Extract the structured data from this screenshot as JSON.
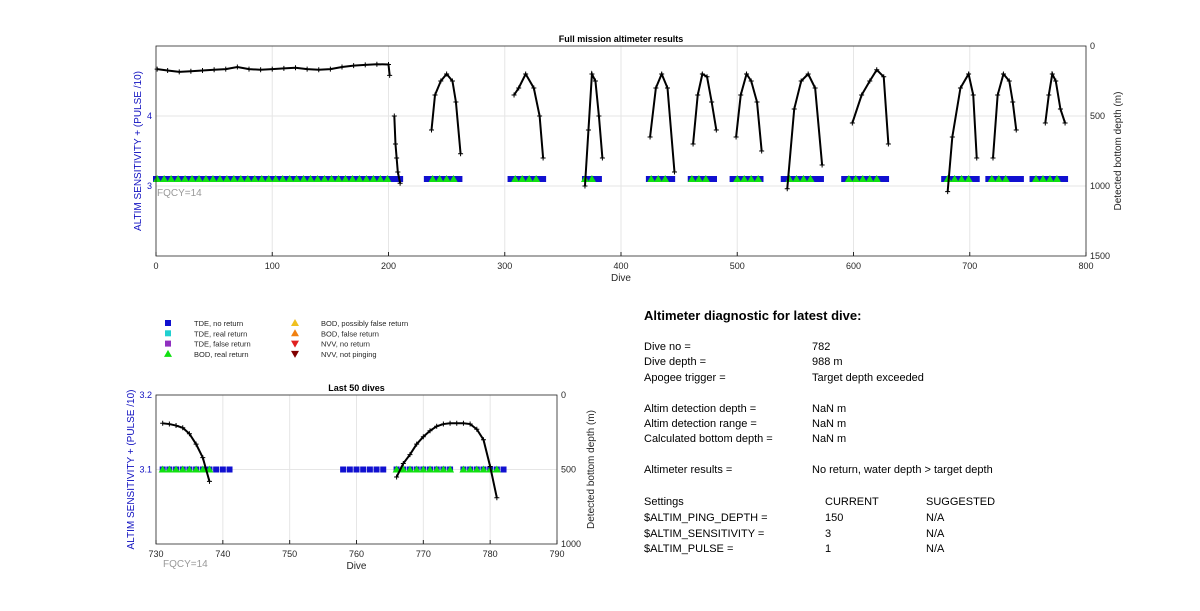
{
  "chart_data": [
    {
      "type": "scatter",
      "title": "Full mission altimeter results",
      "xlabel": "Dive",
      "ylabel": "ALTIM SENSITIVITY + (PULSE /10)",
      "y2label": "Detected bottom depth (m)",
      "annotation": "FQCY=14",
      "xlim": [
        0,
        800
      ],
      "ylim": [
        2,
        5
      ],
      "y2lim": [
        1500,
        0
      ],
      "xticks": [
        "0",
        "100",
        "200",
        "300",
        "400",
        "500",
        "600",
        "700",
        "800"
      ],
      "yticks": [
        "3",
        "4"
      ],
      "y2ticks": [
        "0",
        "500",
        "1000",
        "1500"
      ],
      "grid": true,
      "series": [
        {
          "name": "TDE, no return",
          "color": "#1010d0",
          "marker": "square",
          "y": 3.1,
          "ranges": [
            [
              0,
              200
            ],
            [
              202,
              210
            ],
            [
              233,
              262
            ],
            [
              305,
              333
            ],
            [
              369,
              384
            ],
            [
              424,
              446
            ],
            [
              460,
              482
            ],
            [
              496,
              521
            ],
            [
              540,
              573
            ],
            [
              592,
              630
            ],
            [
              678,
              706
            ],
            [
              716,
              744
            ],
            [
              754,
              782
            ]
          ]
        },
        {
          "name": "BOD, real return",
          "color": "#10e010",
          "marker": "triangle",
          "y": 3.1,
          "ranges": [
            [
              1,
              200
            ],
            [
              238,
              260
            ],
            [
              309,
              328
            ],
            [
              369,
              380
            ],
            [
              426,
              440
            ],
            [
              461,
              475
            ],
            [
              500,
              520
            ],
            [
              545,
              568
            ],
            [
              596,
              620
            ],
            [
              681,
              700
            ],
            [
              719,
              736
            ],
            [
              757,
              775
            ]
          ]
        },
        {
          "name": "Detected bottom depth",
          "color": "#000000",
          "marker": "line",
          "axis": "right",
          "segments": [
            {
              "x": [
                1,
                10,
                20,
                30,
                40,
                50,
                60,
                70,
                80,
                90,
                100,
                110,
                120,
                130,
                140,
                150,
                160,
                170,
                180,
                190,
                200,
                201
              ],
              "y": [
                165,
                175,
                185,
                180,
                175,
                170,
                165,
                150,
                165,
                170,
                165,
                160,
                155,
                165,
                170,
                165,
                150,
                140,
                135,
                130,
                132,
                210
              ]
            },
            {
              "x": [
                205,
                206,
                207,
                208,
                210
              ],
              "y": [
                500,
                700,
                800,
                900,
                980
              ]
            },
            {
              "x": [
                237,
                240,
                245,
                250,
                255,
                258,
                262
              ],
              "y": [
                600,
                350,
                250,
                200,
                250,
                400,
                770
              ]
            },
            {
              "x": [
                308,
                312,
                318,
                325,
                330,
                333
              ],
              "y": [
                350,
                300,
                200,
                300,
                500,
                800
              ]
            },
            {
              "x": [
                369,
                372,
                375,
                378,
                381,
                384
              ],
              "y": [
                1000,
                600,
                200,
                250,
                500,
                800
              ]
            },
            {
              "x": [
                425,
                430,
                435,
                440,
                446
              ],
              "y": [
                650,
                300,
                200,
                300,
                900
              ]
            },
            {
              "x": [
                462,
                466,
                470,
                474,
                478,
                482
              ],
              "y": [
                700,
                350,
                200,
                220,
                400,
                600
              ]
            },
            {
              "x": [
                499,
                503,
                508,
                512,
                517,
                521
              ],
              "y": [
                650,
                350,
                200,
                250,
                400,
                750
              ]
            },
            {
              "x": [
                543,
                549,
                555,
                561,
                567,
                573
              ],
              "y": [
                1020,
                450,
                250,
                200,
                300,
                850
              ]
            },
            {
              "x": [
                599,
                607,
                614,
                620,
                626,
                630
              ],
              "y": [
                550,
                350,
                250,
                170,
                220,
                700
              ]
            },
            {
              "x": [
                681,
                685,
                692,
                699,
                703,
                706
              ],
              "y": [
                1040,
                650,
                300,
                200,
                350,
                800
              ]
            },
            {
              "x": [
                720,
                724,
                729,
                734,
                737,
                740
              ],
              "y": [
                800,
                350,
                200,
                250,
                400,
                600
              ]
            },
            {
              "x": [
                765,
                768,
                771,
                774,
                778,
                782
              ],
              "y": [
                550,
                350,
                200,
                250,
                450,
                550
              ]
            }
          ]
        }
      ]
    },
    {
      "type": "scatter",
      "title": "Last 50 dives",
      "xlabel": "Dive",
      "ylabel": "ALTIM SENSITIVITY + (PULSE /10)",
      "y2label": "Detected bottom depth (m)",
      "annotation": "FQCY=14",
      "xlim": [
        730,
        790
      ],
      "ylim": [
        3.0,
        3.2
      ],
      "y2lim": [
        1000,
        0
      ],
      "xticks": [
        "730",
        "740",
        "750",
        "760",
        "770",
        "780",
        "790"
      ],
      "yticks": [
        "3.1",
        "3.2"
      ],
      "y2ticks": [
        "0",
        "500",
        "1000"
      ],
      "grid": true,
      "series": [
        {
          "name": "TDE, no return",
          "color": "#1010d0",
          "marker": "square",
          "y": 3.1,
          "x": [
            731,
            732,
            733,
            734,
            735,
            736,
            737,
            738,
            739,
            740,
            741,
            758,
            759,
            760,
            761,
            762,
            763,
            764,
            766,
            767,
            768,
            769,
            770,
            771,
            772,
            773,
            774,
            776,
            777,
            778,
            779,
            780,
            781,
            782
          ]
        },
        {
          "name": "BOD, real return",
          "color": "#10e010",
          "marker": "triangle",
          "y": 3.1,
          "x": [
            731,
            732,
            733,
            734,
            735,
            736,
            737,
            738,
            766,
            767,
            768,
            769,
            770,
            771,
            772,
            773,
            774,
            776,
            777,
            778,
            779,
            780,
            781
          ]
        },
        {
          "name": "Detected bottom depth",
          "color": "#000000",
          "marker": "line",
          "axis": "right",
          "segments": [
            {
              "x": [
                731,
                732,
                733,
                734,
                735,
                736,
                737,
                738
              ],
              "y": [
                190,
                195,
                205,
                220,
                260,
                330,
                420,
                580
              ]
            },
            {
              "x": [
                766,
                767,
                768,
                769,
                770,
                771,
                772,
                773,
                774,
                775,
                776,
                777,
                778,
                779,
                780,
                781
              ],
              "y": [
                550,
                460,
                400,
                330,
                280,
                240,
                210,
                195,
                190,
                190,
                190,
                195,
                230,
                300,
                480,
                690
              ]
            }
          ]
        }
      ]
    }
  ],
  "legend": {
    "items": [
      {
        "label": "TDE, no return",
        "color": "#1010d0",
        "marker": "square"
      },
      {
        "label": "TDE, real return",
        "color": "#20d0d0",
        "marker": "square"
      },
      {
        "label": "TDE, false return",
        "color": "#9030c0",
        "marker": "square"
      },
      {
        "label": "BOD, real return",
        "color": "#10e010",
        "marker": "triangle-up"
      },
      {
        "label": "BOD, possibly false return",
        "color": "#f0c020",
        "marker": "triangle-up"
      },
      {
        "label": "BOD, false return",
        "color": "#f08010",
        "marker": "triangle-up"
      },
      {
        "label": "NVV, no return",
        "color": "#e02020",
        "marker": "triangle-down"
      },
      {
        "label": "NVV, not pinging",
        "color": "#800000",
        "marker": "triangle-down"
      }
    ]
  },
  "diagnostic": {
    "title": "Altimeter diagnostic for latest dive:",
    "dive_no_label": "Dive no =",
    "dive_no": "782",
    "dive_depth_label": "Dive depth =",
    "dive_depth": "988 m",
    "apogee_label": "Apogee trigger =",
    "apogee": "Target depth exceeded",
    "altim_det_depth_label": "Altim detection depth =",
    "altim_det_depth": "NaN m",
    "altim_det_range_label": "Altim detection range =",
    "altim_det_range": "NaN m",
    "calc_bottom_label": "Calculated bottom depth =",
    "calc_bottom": "NaN m",
    "results_label": "Altimeter results =",
    "results": "No return, water depth > target depth",
    "settings_label": "Settings",
    "current_header": "CURRENT",
    "suggested_header": "SUGGESTED",
    "settings": [
      {
        "name": "$ALTIM_PING_DEPTH =",
        "current": "150",
        "suggested": "N/A"
      },
      {
        "name": "$ALTIM_SENSITIVITY =",
        "current": "3",
        "suggested": "N/A"
      },
      {
        "name": "$ALTIM_PULSE =",
        "current": "1",
        "suggested": "N/A"
      }
    ]
  }
}
